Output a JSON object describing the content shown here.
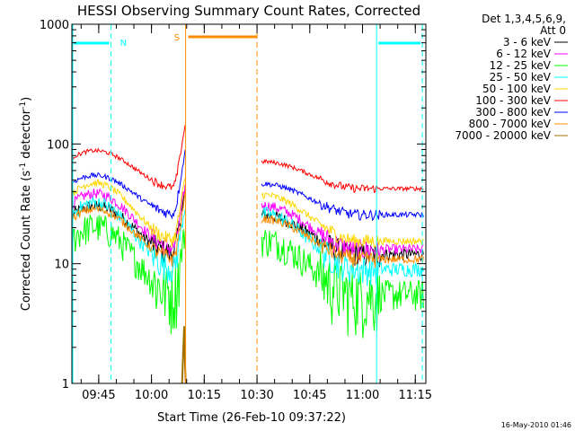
{
  "chart_data": {
    "type": "line",
    "title": "HESSI Observing Summary Count Rates, Corrected",
    "xlabel": "Start Time (26-Feb-10 09:37:22)",
    "ylabel_main": "Corrected Count Rate (s",
    "ylabel_sup1": "-1",
    "ylabel_mid": " detector",
    "ylabel_sup2": "-1",
    "ylabel_end": ")",
    "yscale": "log",
    "ylim": [
      1,
      1000
    ],
    "xlim_minutes": [
      577.37,
      678
    ],
    "xticks": [
      {
        "min": 585,
        "label": "09:45"
      },
      {
        "min": 600,
        "label": "10:00"
      },
      {
        "min": 615,
        "label": "10:15"
      },
      {
        "min": 630,
        "label": "10:30"
      },
      {
        "min": 645,
        "label": "10:45"
      },
      {
        "min": 660,
        "label": "11:00"
      },
      {
        "min": 675,
        "label": "11:15"
      }
    ],
    "yticks": [
      {
        "value": 1,
        "label": "1"
      },
      {
        "value": 10,
        "label": "10"
      },
      {
        "value": 100,
        "label": "100"
      },
      {
        "value": 1000,
        "label": "1000"
      }
    ],
    "legend_header": [
      "Det 1,3,4,5,6,9,",
      "Att 0"
    ],
    "legend_placement": "right",
    "series": [
      {
        "name": "3 - 6 keV",
        "color": "#000000",
        "q": 11,
        "s": 17,
        "f": 14,
        "n": 0.12
      },
      {
        "name": "6 - 12 keV",
        "color": "#ff00ff",
        "q": 12,
        "s": 22,
        "f": 17,
        "n": 0.1
      },
      {
        "name": "12 - 25 keV",
        "color": "#00ff00",
        "q": 5,
        "s": 12,
        "f": 9,
        "n": 0.3
      },
      {
        "name": "25 - 50 keV",
        "color": "#00ffff",
        "q": 8,
        "s": 19,
        "f": 15,
        "n": 0.14
      },
      {
        "name": "50 - 100 keV",
        "color": "#ffd700",
        "q": 14,
        "s": 27,
        "f": 21,
        "n": 0.07
      },
      {
        "name": "100 - 300 keV",
        "color": "#ff0000",
        "q": 40,
        "s": 48,
        "f": 38,
        "n": 0.04
      },
      {
        "name": "300 - 800 keV",
        "color": "#0000ff",
        "q": 24,
        "s": 30,
        "f": 25,
        "n": 0.05
      },
      {
        "name": "800 - 7000 keV",
        "color": "#ff8c00",
        "q": 10,
        "s": 16,
        "f": 13,
        "n": 0.08
      },
      {
        "name": "7000 - 20000 keV",
        "color": "#a07000",
        "q": 0,
        "s": 0,
        "f": 0,
        "n": 0
      }
    ],
    "annotations": [
      {
        "text": "N",
        "color": "#00ffff"
      },
      {
        "text": "S",
        "color": "#ff8c00"
      }
    ],
    "night_intervals_min": [
      [
        577.37,
        588.5
      ],
      [
        664,
        677
      ]
    ],
    "saa_interval_min": [
      609.7,
      630
    ],
    "data_gap_min": [
      609.8,
      631.3
    ],
    "night_boundaries_min": [
      {
        "t": 588.5,
        "style": "dash"
      },
      {
        "t": 664,
        "style": "solid"
      },
      {
        "t": 677,
        "style": "dash"
      }
    ],
    "saa_boundaries_min": [
      {
        "t": 609.7,
        "style": "solid"
      },
      {
        "t": 630,
        "style": "dash"
      }
    ],
    "flare_peak": {
      "start_min": 606,
      "end_min": 609.7,
      "peak_factor": 3.5
    },
    "brown_spike": {
      "min": 609.3,
      "value": 3
    }
  },
  "footer": {
    "timestamp": "16-May-2010 01:46"
  },
  "colors": {
    "night": "#00ffff",
    "saa": "#ff8c00",
    "axis": "#000000"
  }
}
